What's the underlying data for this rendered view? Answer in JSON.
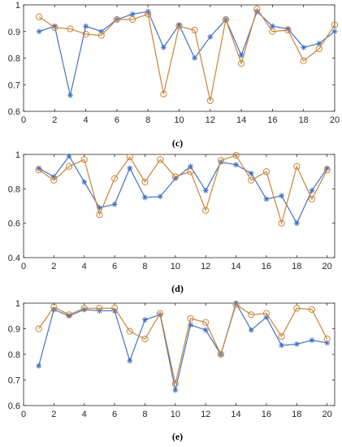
{
  "chart_data": [
    {
      "type": "line",
      "caption": "(c)",
      "x": [
        1,
        2,
        3,
        4,
        5,
        6,
        7,
        8,
        9,
        10,
        11,
        12,
        13,
        14,
        15,
        16,
        17,
        18,
        19,
        20
      ],
      "xlim": [
        0,
        20
      ],
      "ylim": [
        0.6,
        1.0
      ],
      "xticks": [
        "0",
        "2",
        "4",
        "6",
        "8",
        "10",
        "12",
        "14",
        "16",
        "18",
        "20"
      ],
      "yticks": [
        "0.6",
        "0.7",
        "0.8",
        "0.9",
        "1"
      ],
      "grid": false,
      "series": [
        {
          "marker": "star",
          "color": "#4472C4",
          "values": [
            0.9,
            0.92,
            0.66,
            0.92,
            0.9,
            0.945,
            0.965,
            0.975,
            0.84,
            0.925,
            0.8,
            0.88,
            0.945,
            0.81,
            0.975,
            0.92,
            0.91,
            0.84,
            0.855,
            0.9
          ]
        },
        {
          "marker": "circle",
          "color": "#C8843A",
          "values": [
            0.955,
            0.915,
            0.91,
            0.89,
            0.885,
            0.945,
            0.945,
            0.965,
            0.665,
            0.92,
            0.905,
            0.64,
            0.945,
            0.78,
            0.985,
            0.9,
            0.905,
            0.79,
            0.835,
            0.925
          ]
        }
      ]
    },
    {
      "type": "line",
      "caption": "(d)",
      "x": [
        1,
        2,
        3,
        4,
        5,
        6,
        7,
        8,
        9,
        10,
        11,
        12,
        13,
        14,
        15,
        16,
        17,
        18,
        19,
        20
      ],
      "xlim": [
        0,
        20.5
      ],
      "ylim": [
        0.4,
        1.0
      ],
      "xticks": [
        "0",
        "2",
        "4",
        "6",
        "8",
        "10",
        "12",
        "14",
        "16",
        "18",
        "20"
      ],
      "yticks": [
        "0.4",
        "0.6",
        "0.8",
        "1"
      ],
      "grid": false,
      "series": [
        {
          "marker": "star",
          "color": "#4472C4",
          "values": [
            0.92,
            0.87,
            0.99,
            0.84,
            0.69,
            0.71,
            0.92,
            0.75,
            0.755,
            0.86,
            0.93,
            0.79,
            0.955,
            0.94,
            0.89,
            0.74,
            0.76,
            0.6,
            0.79,
            0.92
          ]
        },
        {
          "marker": "circle",
          "color": "#C8843A",
          "values": [
            0.91,
            0.85,
            0.93,
            0.97,
            0.65,
            0.86,
            0.985,
            0.84,
            0.97,
            0.87,
            0.9,
            0.675,
            0.965,
            0.995,
            0.85,
            0.9,
            0.6,
            0.93,
            0.74,
            0.91
          ]
        }
      ]
    },
    {
      "type": "line",
      "caption": "(e)",
      "x": [
        1,
        2,
        3,
        4,
        5,
        6,
        7,
        8,
        9,
        10,
        11,
        12,
        13,
        14,
        15,
        16,
        17,
        18,
        19,
        20
      ],
      "xlim": [
        0,
        20.5
      ],
      "ylim": [
        0.6,
        1.0
      ],
      "xticks": [
        "0",
        "2",
        "4",
        "6",
        "8",
        "10",
        "12",
        "14",
        "16",
        "18",
        "20"
      ],
      "yticks": [
        "0.6",
        "0.7",
        "0.8",
        "0.9",
        "1"
      ],
      "grid": false,
      "series": [
        {
          "marker": "star",
          "color": "#4472C4",
          "values": [
            0.755,
            0.975,
            0.95,
            0.975,
            0.97,
            0.97,
            0.775,
            0.935,
            0.955,
            0.66,
            0.915,
            0.895,
            0.8,
            1.0,
            0.895,
            0.945,
            0.835,
            0.84,
            0.855,
            0.845
          ]
        },
        {
          "marker": "circle",
          "color": "#C8843A",
          "values": [
            0.9,
            0.985,
            0.955,
            0.98,
            0.98,
            0.98,
            0.89,
            0.86,
            0.96,
            0.685,
            0.94,
            0.925,
            0.8,
            0.995,
            0.955,
            0.96,
            0.87,
            0.98,
            0.975,
            0.86
          ]
        }
      ]
    }
  ]
}
